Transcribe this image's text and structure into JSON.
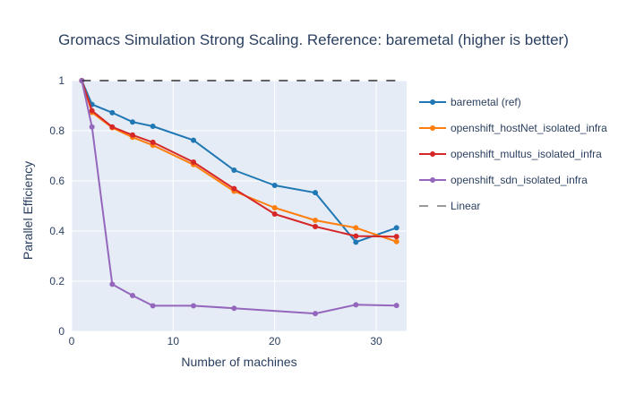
{
  "chart_data": {
    "type": "line",
    "title": "Gromacs Simulation Strong Scaling. Reference: baremetal (higher is better)",
    "xlabel": "Number of machines",
    "ylabel": "Parallel Efficiency",
    "xlim": [
      0,
      33
    ],
    "ylim": [
      0,
      1
    ],
    "xticks": [
      0,
      10,
      20,
      30
    ],
    "yticks": [
      0,
      0.2,
      0.4,
      0.6,
      0.8,
      1
    ],
    "grid": true,
    "legend_position": "right",
    "plot_background": "#e5ecf6",
    "series": [
      {
        "name": "baremetal (ref)",
        "color": "#1f77b4",
        "mode": "lines+markers",
        "x": [
          1,
          2,
          4,
          6,
          8,
          12,
          16,
          20,
          24,
          28,
          32
        ],
        "y": [
          1.0,
          0.905,
          0.872,
          0.835,
          0.818,
          0.762,
          0.643,
          0.582,
          0.553,
          0.356,
          0.413
        ]
      },
      {
        "name": "openshift_hostNet_isolated_infra",
        "color": "#ff7f0e",
        "mode": "lines+markers",
        "x": [
          1,
          2,
          4,
          6,
          8,
          12,
          16,
          20,
          24,
          28,
          32
        ],
        "y": [
          1.0,
          0.873,
          0.812,
          0.774,
          0.742,
          0.665,
          0.559,
          0.493,
          0.443,
          0.413,
          0.358
        ]
      },
      {
        "name": "openshift_multus_isolated_infra",
        "color": "#d62728",
        "mode": "lines+markers",
        "x": [
          1,
          2,
          4,
          6,
          8,
          12,
          16,
          20,
          24,
          28,
          32
        ],
        "y": [
          1.0,
          0.88,
          0.815,
          0.783,
          0.754,
          0.675,
          0.569,
          0.468,
          0.418,
          0.38,
          0.378
        ]
      },
      {
        "name": "openshift_sdn_isolated_infra",
        "color": "#9467bd",
        "mode": "lines+markers",
        "x": [
          1,
          2,
          4,
          6,
          8,
          12,
          16,
          24,
          28,
          32
        ],
        "y": [
          1.0,
          0.815,
          0.188,
          0.143,
          0.102,
          0.102,
          0.092,
          0.071,
          0.106,
          0.103
        ]
      },
      {
        "name": "Linear",
        "color": "#333333",
        "mode": "lines",
        "dash": "dash",
        "x": [
          1,
          32
        ],
        "y": [
          1.0,
          1.0
        ]
      }
    ]
  }
}
